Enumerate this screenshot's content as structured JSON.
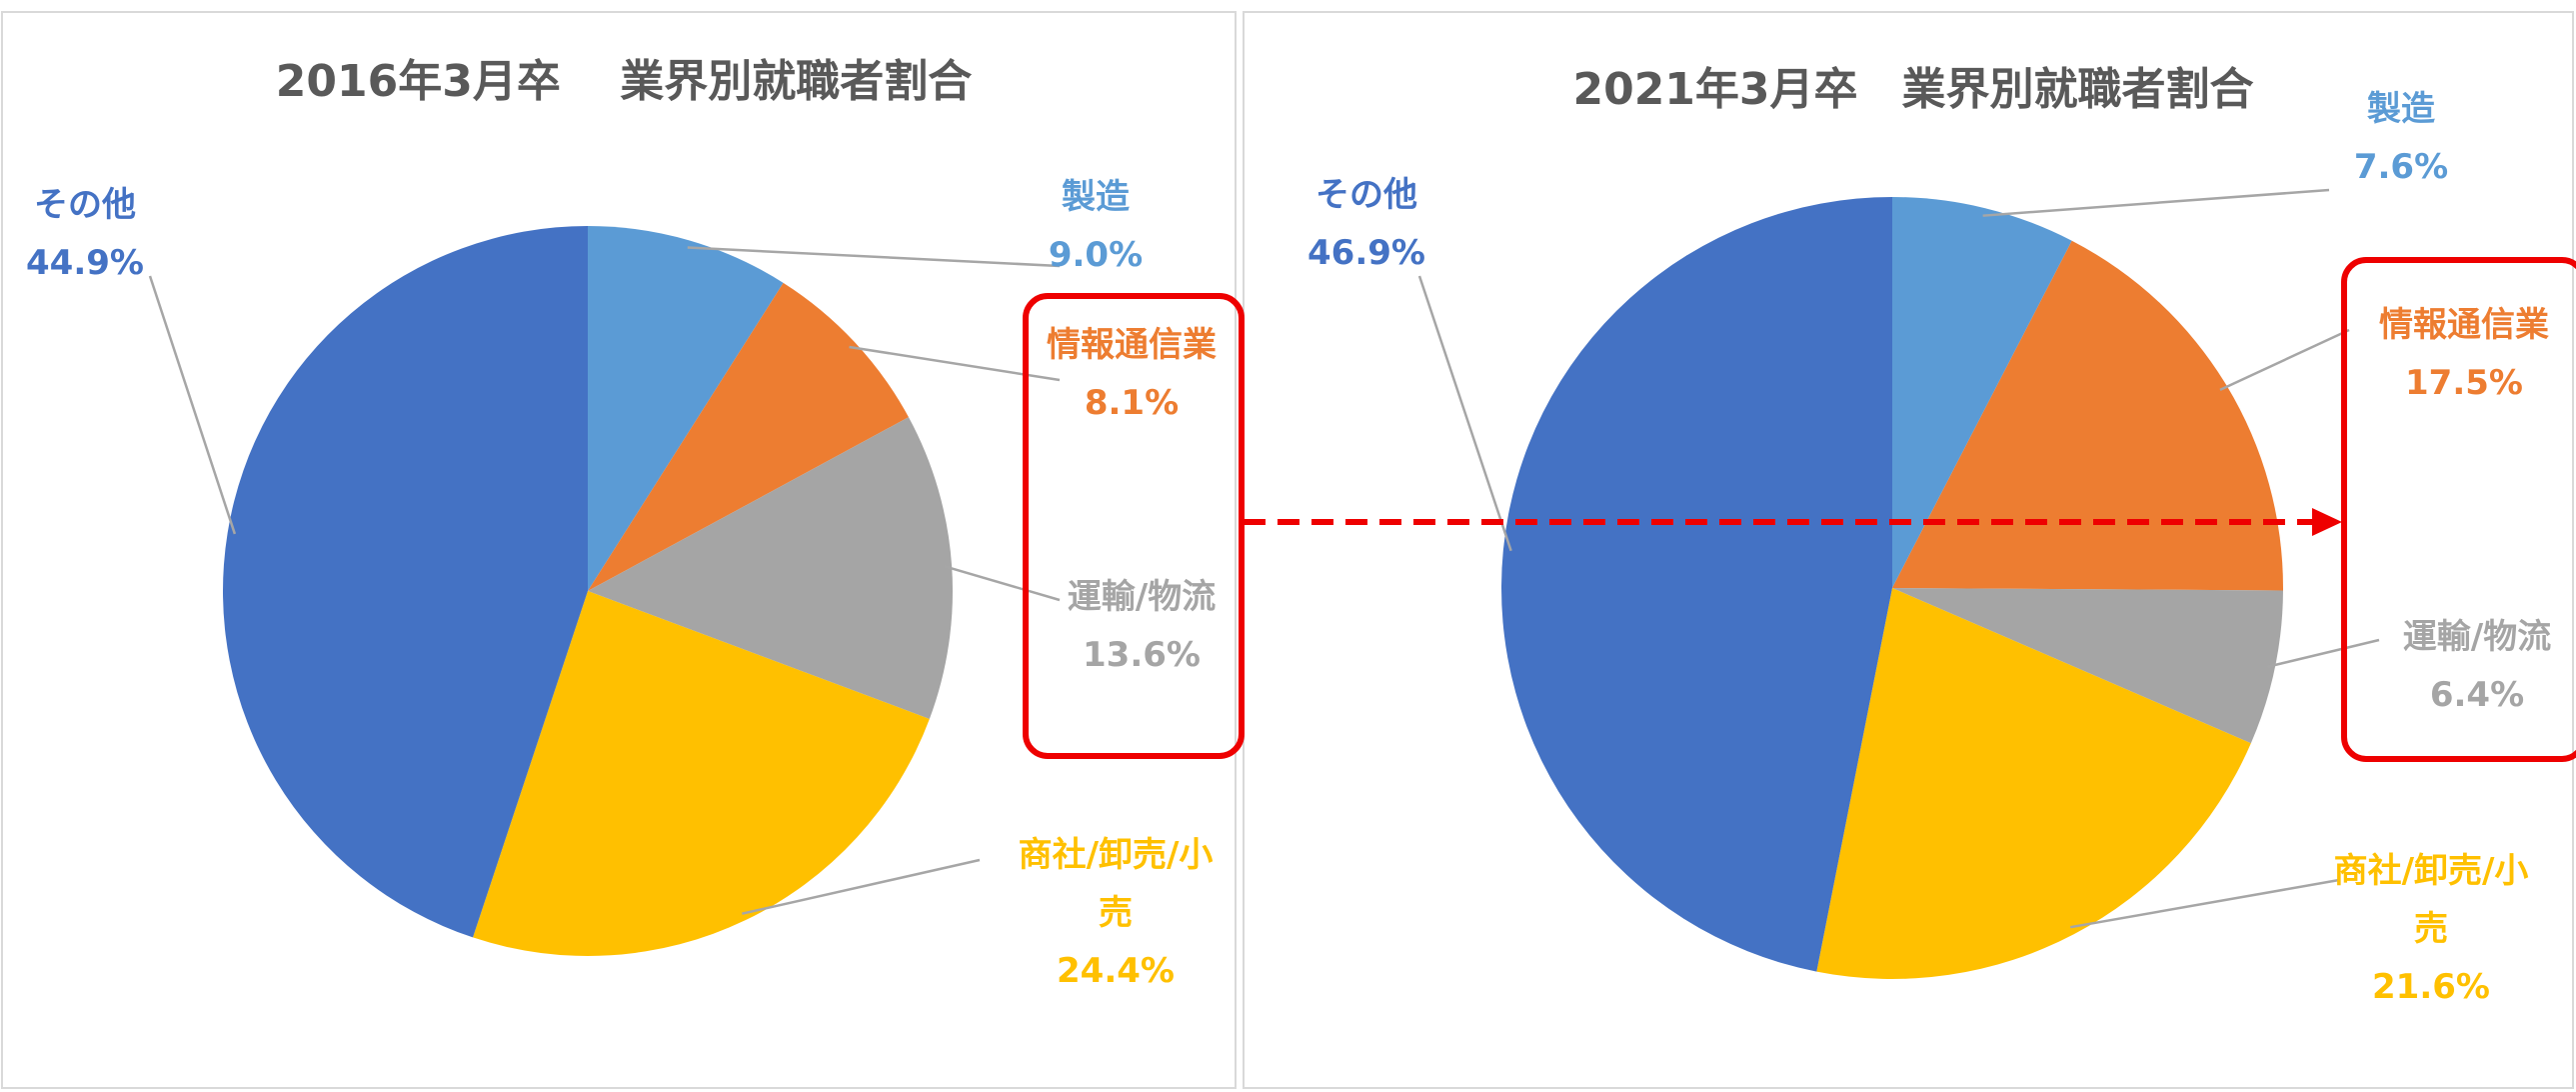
{
  "chart_data": [
    {
      "type": "pie",
      "title": "2016年3月卒　 業界別就職者割合",
      "categories": [
        "製造",
        "情報通信業",
        "運輸/物流",
        "商社/卸売/小売",
        "その他"
      ],
      "values": [
        9.0,
        8.1,
        13.6,
        24.4,
        44.9
      ],
      "value_labels": [
        "9.0%",
        "8.1%",
        "13.6%",
        "24.4%",
        "44.9%"
      ],
      "colors": [
        "#5b9bd5",
        "#ed7d31",
        "#a5a5a5",
        "#ffc000",
        "#4472c4"
      ]
    },
    {
      "type": "pie",
      "title": "2021年3月卒　業界別就職者割合",
      "categories": [
        "製造",
        "情報通信業",
        "運輸/物流",
        "商社/卸売/小売",
        "その他"
      ],
      "values": [
        7.6,
        17.5,
        6.4,
        21.6,
        46.9
      ],
      "value_labels": [
        "7.6%",
        "17.5%",
        "6.4%",
        "21.6%",
        "46.9%"
      ],
      "colors": [
        "#5b9bd5",
        "#ed7d31",
        "#a5a5a5",
        "#ffc000",
        "#4472c4"
      ]
    }
  ]
}
